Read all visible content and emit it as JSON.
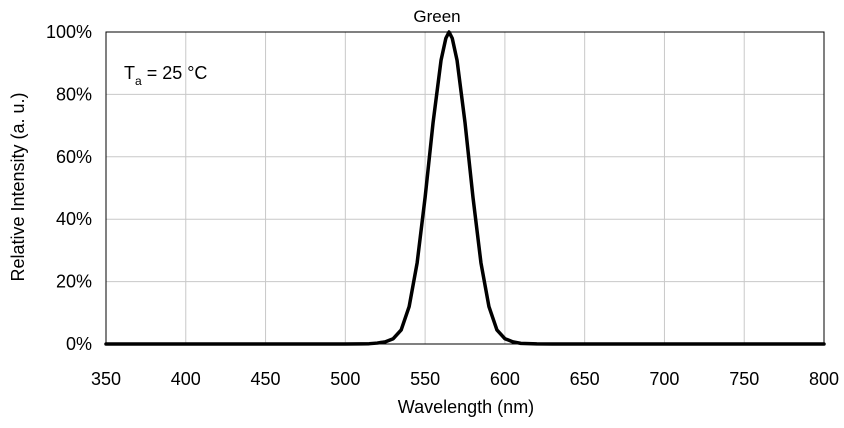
{
  "chart_data": {
    "type": "line",
    "title": "Green",
    "xlabel": "Wavelength (nm)",
    "ylabel": "Relative Intensity (a. u.)",
    "xlim": [
      350,
      800
    ],
    "ylim": [
      0,
      100
    ],
    "xticks": [
      350,
      400,
      450,
      500,
      550,
      600,
      650,
      700,
      750,
      800
    ],
    "yticks": [
      0,
      20,
      40,
      60,
      80,
      100
    ],
    "xtick_labels": [
      "350",
      "400",
      "450",
      "500",
      "550",
      "600",
      "650",
      "700",
      "750",
      "800"
    ],
    "ytick_labels": [
      "0%",
      "20%",
      "40%",
      "60%",
      "80%",
      "100%"
    ],
    "grid": true,
    "annotation": {
      "base": "T",
      "subscript": "a",
      "rest": " = 25 °C"
    },
    "series": [
      {
        "color": "#000000",
        "x": [
          350,
          500,
          510,
          515,
          520,
          525,
          530,
          535,
          540,
          545,
          550,
          555,
          560,
          563,
          565,
          567,
          570,
          575,
          580,
          585,
          590,
          595,
          600,
          605,
          610,
          620,
          630,
          800
        ],
        "y": [
          0,
          0,
          0.05,
          0.1,
          0.3,
          0.7,
          1.7,
          4.5,
          12,
          26,
          47,
          71,
          91,
          98,
          100,
          98,
          91,
          71,
          47,
          26,
          12,
          4.5,
          1.7,
          0.7,
          0.2,
          0.03,
          0,
          0
        ]
      }
    ]
  }
}
